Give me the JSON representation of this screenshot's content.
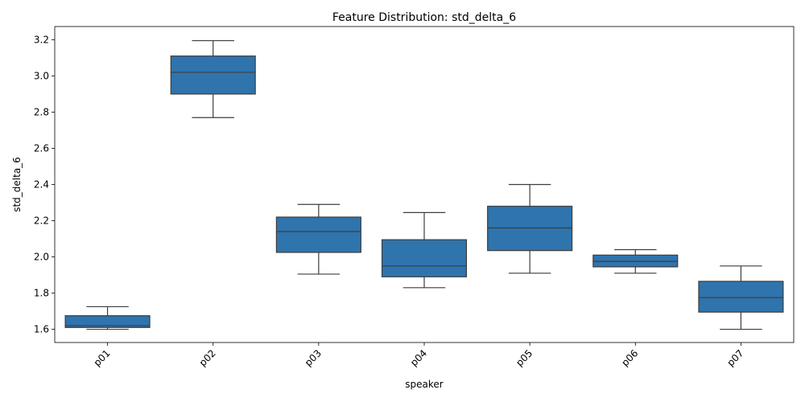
{
  "chart_data": {
    "type": "box",
    "title": "Feature Distribution: std_delta_6",
    "xlabel": "speaker",
    "ylabel": "std_delta_6",
    "categories": [
      "p01",
      "p02",
      "p03",
      "p04",
      "p05",
      "p06",
      "p07"
    ],
    "boxes": [
      {
        "category": "p01",
        "whisker_low": 1.6,
        "q1": 1.61,
        "median": 1.62,
        "q3": 1.675,
        "whisker_high": 1.725
      },
      {
        "category": "p02",
        "whisker_low": 2.77,
        "q1": 2.9,
        "median": 3.02,
        "q3": 3.11,
        "whisker_high": 3.195
      },
      {
        "category": "p03",
        "whisker_low": 1.905,
        "q1": 2.025,
        "median": 2.14,
        "q3": 2.22,
        "whisker_high": 2.29
      },
      {
        "category": "p04",
        "whisker_low": 1.83,
        "q1": 1.89,
        "median": 1.95,
        "q3": 2.095,
        "whisker_high": 2.245
      },
      {
        "category": "p05",
        "whisker_low": 1.91,
        "q1": 2.035,
        "median": 2.16,
        "q3": 2.28,
        "whisker_high": 2.4
      },
      {
        "category": "p06",
        "whisker_low": 1.91,
        "q1": 1.945,
        "median": 1.975,
        "q3": 2.01,
        "whisker_high": 2.04
      },
      {
        "category": "p07",
        "whisker_low": 1.6,
        "q1": 1.695,
        "median": 1.775,
        "q3": 1.865,
        "whisker_high": 1.95
      }
    ],
    "yticks": [
      "1.6",
      "1.8",
      "2.0",
      "2.2",
      "2.4",
      "2.6",
      "2.8",
      "3.0",
      "3.2"
    ],
    "ylim": [
      1.527,
      3.273
    ],
    "xtick_rotation": 45,
    "grid": false,
    "legend": "none",
    "colors": {
      "box_fill": "#2f74ad",
      "line": "#3d3d3d",
      "axis": "#000000"
    }
  }
}
